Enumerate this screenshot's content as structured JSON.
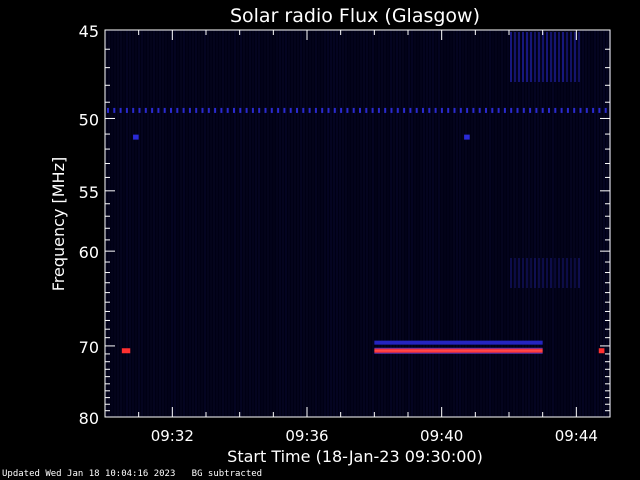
{
  "chart_data": {
    "type": "heatmap",
    "title": "Solar radio Flux (Glasgow)",
    "xlabel": "Start Time (18-Jan-23 09:30:00)",
    "ylabel": "Frequency [MHz]",
    "x_range": [
      "09:30:00",
      "09:45:00"
    ],
    "x_ticks": [
      "09:32",
      "09:36",
      "09:40",
      "09:44"
    ],
    "y_ticks": [
      "45",
      "50",
      "55",
      "60",
      "70",
      "80"
    ],
    "y_axis_inverted": true,
    "colors": {
      "background": "#000000",
      "plot_bg": "#000014",
      "low": "#0a0a3c",
      "mid": "#1e1eb4",
      "high": "#ff2020",
      "axis": "#ffffff"
    },
    "features": [
      {
        "name": "",
        "freq_mhz": 49.5,
        "start": "09:30:00",
        "end": "09:45:00",
        "level": "medium",
        "kind": "dotted-line"
      },
      {
        "name": "",
        "freq_mhz": 69.6,
        "start": "09:38:00",
        "end": "09:43:00",
        "level": "medium",
        "kind": "line"
      },
      {
        "name": "",
        "freq_mhz": 70.6,
        "start": "09:38:00",
        "end": "09:43:00",
        "level": "high",
        "kind": "line"
      },
      {
        "name": "",
        "freq_mhz": 70.6,
        "start": "09:30:30",
        "end": "09:30:45",
        "level": "high",
        "kind": "spot"
      },
      {
        "name": "",
        "freq_mhz": 70.6,
        "start": "09:44:40",
        "end": "09:44:50",
        "level": "high",
        "kind": "spot"
      },
      {
        "name": "",
        "freq_mhz": 51.2,
        "start": "09:30:50",
        "end": "09:31:00",
        "level": "medium",
        "kind": "spot"
      },
      {
        "name": "",
        "freq_mhz": 51.2,
        "start": "09:40:40",
        "end": "09:40:50",
        "level": "medium",
        "kind": "spot"
      }
    ]
  },
  "footer": {
    "updated": "Updated Wed Jan 18 10:04:16 2023",
    "note": "BG subtracted"
  }
}
